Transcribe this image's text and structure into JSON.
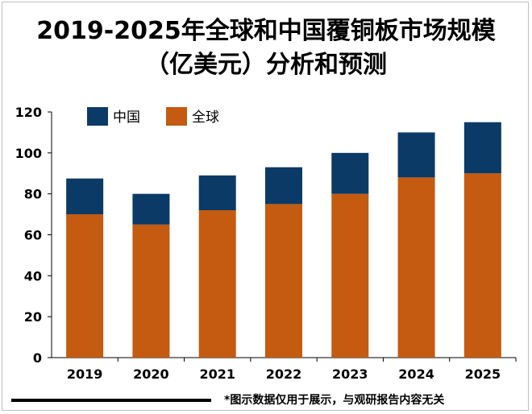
{
  "title": {
    "line1": "2019-2025年全球和中国覆铜板市场规模",
    "line2": "（亿美元）分析和预测"
  },
  "footnote": "*图示数据仅用于展示，与观研报告内容无关",
  "chart_data": {
    "type": "bar",
    "stacked": true,
    "categories": [
      "2019",
      "2020",
      "2021",
      "2022",
      "2023",
      "2024",
      "2025"
    ],
    "series": [
      {
        "name": "全球",
        "color": "#c55a11",
        "values": [
          70,
          65,
          72,
          75,
          80,
          88,
          90
        ]
      },
      {
        "name": "中国",
        "color": "#0b3a66",
        "values": [
          17.5,
          15,
          17,
          18,
          20,
          22,
          25
        ]
      }
    ],
    "ylim": [
      0,
      120
    ],
    "yticks": [
      "0",
      "20",
      "40",
      "60",
      "80",
      "100",
      "120"
    ],
    "legend": {
      "placement": "top-left",
      "order": [
        "中国",
        "全球"
      ]
    },
    "grid": false
  }
}
